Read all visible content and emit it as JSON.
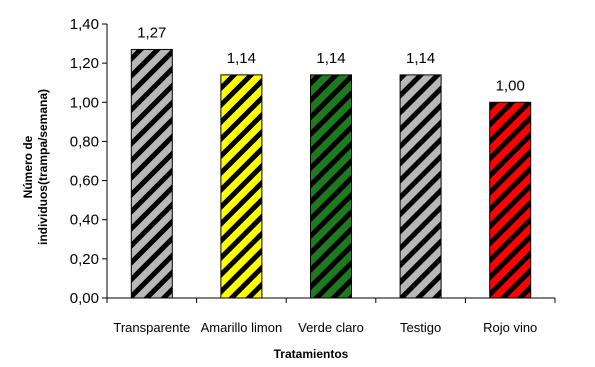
{
  "chart_data": {
    "type": "bar",
    "title": "",
    "xlabel": "Tratamientos",
    "ylabel_lines": [
      "Número de",
      "individuos(trampa/semana)"
    ],
    "categories": [
      "Transparente",
      "Amarillo limon",
      "Verde claro",
      "Testigo",
      "Rojo vino"
    ],
    "values": [
      1.27,
      1.14,
      1.14,
      1.14,
      1.0
    ],
    "value_labels": [
      "1,27",
      "1,14",
      "1,14",
      "1,14",
      "1,00"
    ],
    "bar_colors": [
      "#b8b8b8",
      "#ffff00",
      "#1e7a1e",
      "#b8b8b8",
      "#ff0000"
    ],
    "hatch": "diagonal-black-stripes",
    "ylim": [
      0,
      1.4
    ],
    "yticks": [
      0,
      0.2,
      0.4,
      0.6,
      0.8,
      1.0,
      1.2,
      1.4
    ],
    "ytick_labels": [
      "0,00",
      "0,20",
      "0,40",
      "0,60",
      "0,80",
      "1,00",
      "1,20",
      "1,40"
    ],
    "grid": false,
    "legend": "none"
  }
}
